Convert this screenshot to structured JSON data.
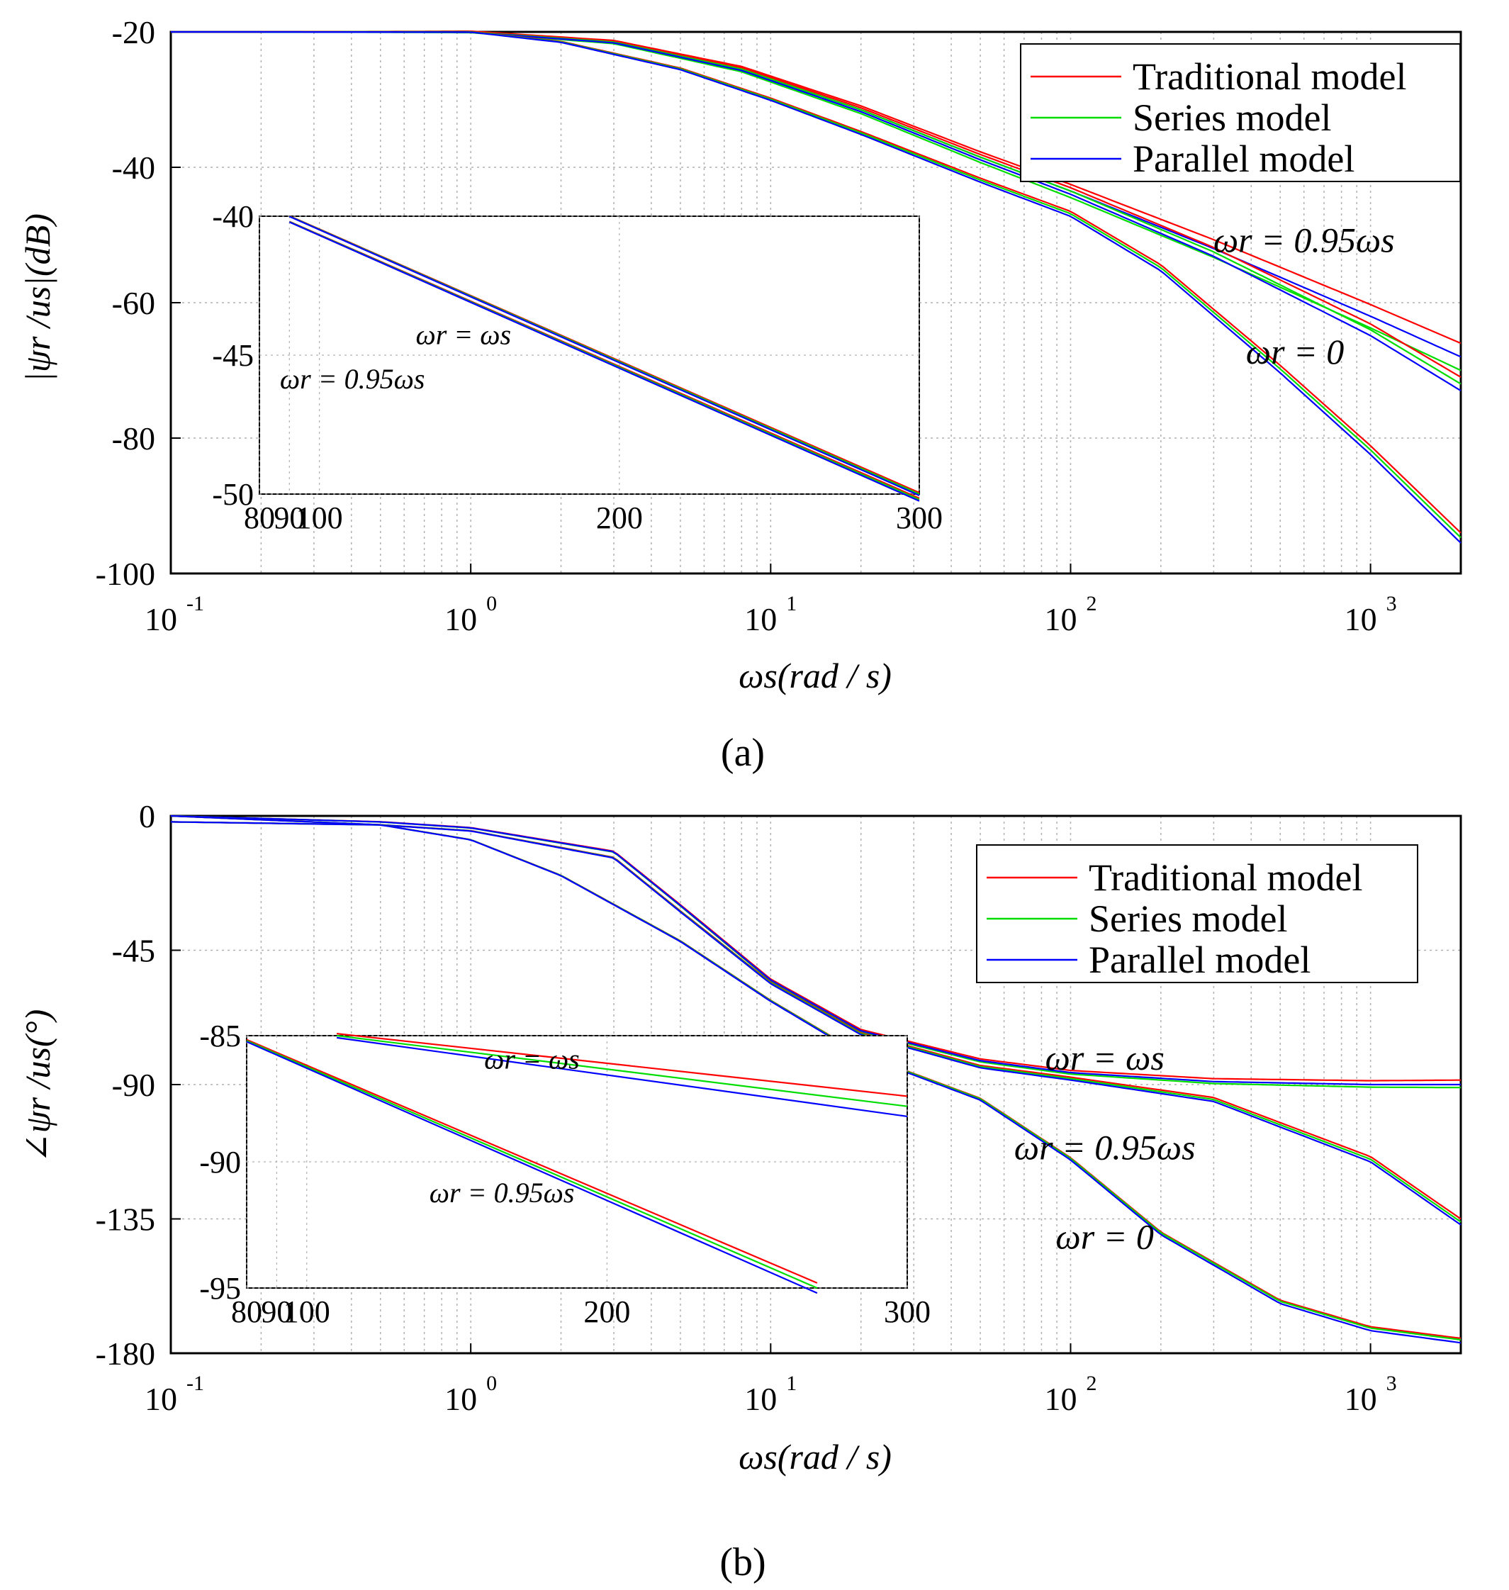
{
  "chart_data": [
    {
      "type": "line",
      "panel_label": "(a)",
      "xlabel": "ωs(rad / s)",
      "ylabel": "|ψr /us|(dB)",
      "xscale": "log",
      "xlim": [
        0.1,
        2000
      ],
      "ylim": [
        -100,
        -20
      ],
      "x_ticks": [
        {
          "base": "10",
          "exp": "-1",
          "value": 0.1
        },
        {
          "base": "10",
          "exp": "0",
          "value": 1
        },
        {
          "base": "10",
          "exp": "1",
          "value": 10
        },
        {
          "base": "10",
          "exp": "2",
          "value": 100
        },
        {
          "base": "10",
          "exp": "3",
          "value": 1000
        }
      ],
      "y_ticks": [
        "-20",
        "-40",
        "-60",
        "-80",
        "-100"
      ],
      "y_tick_values": [
        -20,
        -40,
        -60,
        -80,
        -100
      ],
      "grid": true,
      "legend": {
        "position": "top-right",
        "entries": [
          "Traditional model",
          "Series model",
          "Parallel model"
        ]
      },
      "series_colors": [
        "#ff0000",
        "#00dd00",
        "#0000ff"
      ],
      "annotations": [
        "ωr = 0.95ωs",
        "ωr = 0"
      ],
      "annotation_positions": [
        [
          600,
          -52.5
        ],
        [
          560,
          -69
        ]
      ],
      "curves": [
        {
          "condition": "ωr = ωs",
          "x": [
            0.1,
            1,
            3,
            8,
            20,
            50,
            100,
            300,
            1000,
            2000
          ],
          "y": [
            -20,
            -20,
            -21.5,
            -25.5,
            -31.5,
            -38.5,
            -43.5,
            -52,
            -62,
            -68
          ]
        },
        {
          "condition": "ωr = 0.95ωs",
          "x": [
            0.1,
            1,
            3,
            8,
            20,
            50,
            100,
            300,
            1000,
            2000
          ],
          "y": [
            -20,
            -20,
            -21.5,
            -25.5,
            -31.5,
            -38.5,
            -43.5,
            -52.5,
            -64,
            -72
          ]
        },
        {
          "condition": "ωr = 0",
          "x": [
            0.1,
            1,
            2,
            5,
            10,
            20,
            50,
            100,
            200,
            500,
            1000,
            2000
          ],
          "y": [
            -20,
            -20,
            -21.5,
            -25.5,
            -30,
            -35,
            -42,
            -47,
            -55,
            -70,
            -82,
            -95
          ]
        }
      ],
      "inset": {
        "xlim": [
          80,
          300
        ],
        "ylim": [
          -50,
          -40
        ],
        "x_ticks": [
          "80",
          "90",
          "100",
          "200",
          "300"
        ],
        "x_tick_values": [
          80,
          90,
          100,
          200,
          300
        ],
        "y_ticks": [
          "-40",
          "-45",
          "-50"
        ],
        "y_tick_values": [
          -40,
          -45,
          -50
        ],
        "annotations": [
          "ωr = ωs",
          "ωr = 0.95ωs"
        ],
        "annotation_positions": [
          [
            148,
            -44.6
          ],
          [
            111,
            -46.2
          ]
        ],
        "curves": [
          {
            "condition": "ωr = ωs",
            "x": [
              90,
              300
            ],
            "y": [
              -40,
              -50
            ]
          },
          {
            "condition": "ωr = 0.95ωs",
            "x": [
              90,
              300
            ],
            "y": [
              -40.2,
              -50.2
            ]
          }
        ]
      }
    },
    {
      "type": "line",
      "panel_label": "(b)",
      "xlabel": "ωs(rad / s)",
      "ylabel": "∠ψr /us(°)",
      "xscale": "log",
      "xlim": [
        0.1,
        2000
      ],
      "ylim": [
        -180,
        0
      ],
      "x_ticks": [
        {
          "base": "10",
          "exp": "-1",
          "value": 0.1
        },
        {
          "base": "10",
          "exp": "0",
          "value": 1
        },
        {
          "base": "10",
          "exp": "1",
          "value": 10
        },
        {
          "base": "10",
          "exp": "2",
          "value": 100
        },
        {
          "base": "10",
          "exp": "3",
          "value": 1000
        }
      ],
      "y_ticks": [
        "0",
        "-45",
        "-90",
        "-135",
        "-180"
      ],
      "y_tick_values": [
        0,
        -45,
        -90,
        -135,
        -180
      ],
      "grid": true,
      "legend": {
        "position": "top-right",
        "entries": [
          "Traditional model",
          "Series model",
          "Parallel model"
        ]
      },
      "series_colors": [
        "#ff0000",
        "#00dd00",
        "#0000ff"
      ],
      "annotations": [
        "ωr = ωs",
        "ωr = 0.95ωs",
        "ωr = 0"
      ],
      "annotation_positions": [
        [
          130,
          -85
        ],
        [
          130,
          -115
        ],
        [
          130,
          -145
        ]
      ],
      "curves": [
        {
          "condition": "ωr = ωs",
          "x": [
            0.1,
            0.5,
            1,
            3,
            5,
            10,
            20,
            50,
            100,
            300,
            1000,
            2000
          ],
          "y": [
            0,
            -2,
            -4,
            -12,
            -30,
            -55,
            -72,
            -82,
            -86,
            -89,
            -90,
            -90
          ]
        },
        {
          "condition": "ωr = 0.95ωs",
          "x": [
            0.1,
            0.5,
            1,
            3,
            5,
            10,
            20,
            50,
            100,
            300,
            1000,
            2000
          ],
          "y": [
            -2,
            -3,
            -5,
            -14,
            -32,
            -56,
            -73,
            -84,
            -88,
            -95,
            -115,
            -136
          ]
        },
        {
          "condition": "ωr = 0",
          "x": [
            0.1,
            0.5,
            1,
            2,
            5,
            10,
            20,
            50,
            100,
            200,
            500,
            1000,
            2000
          ],
          "y": [
            0,
            -3,
            -8,
            -20,
            -42,
            -62,
            -80,
            -95,
            -115,
            -140,
            -163,
            -172,
            -176
          ]
        }
      ],
      "inset": {
        "xlim": [
          80,
          300
        ],
        "ylim": [
          -95,
          -85
        ],
        "x_ticks": [
          "80",
          "90",
          "100",
          "200",
          "300"
        ],
        "x_tick_values": [
          80,
          90,
          100,
          200,
          300
        ],
        "y_ticks": [
          "-85",
          "-90",
          "-95"
        ],
        "y_tick_values": [
          -85,
          -90,
          -95
        ],
        "annotations": [
          "ωr = ωs",
          "ωr = 0.95ωs"
        ],
        "annotation_positions": [
          [
            175,
            -86.3
          ],
          [
            165,
            -91.6
          ]
        ],
        "curves": [
          {
            "condition": "ωr = ωs",
            "x": [
              110,
              300
            ],
            "y": [
              -85,
              -87.8
            ]
          },
          {
            "condition": "ωr = 0.95ωs",
            "x": [
              80,
              270
            ],
            "y": [
              -85.2,
              -95
            ]
          }
        ]
      }
    }
  ]
}
